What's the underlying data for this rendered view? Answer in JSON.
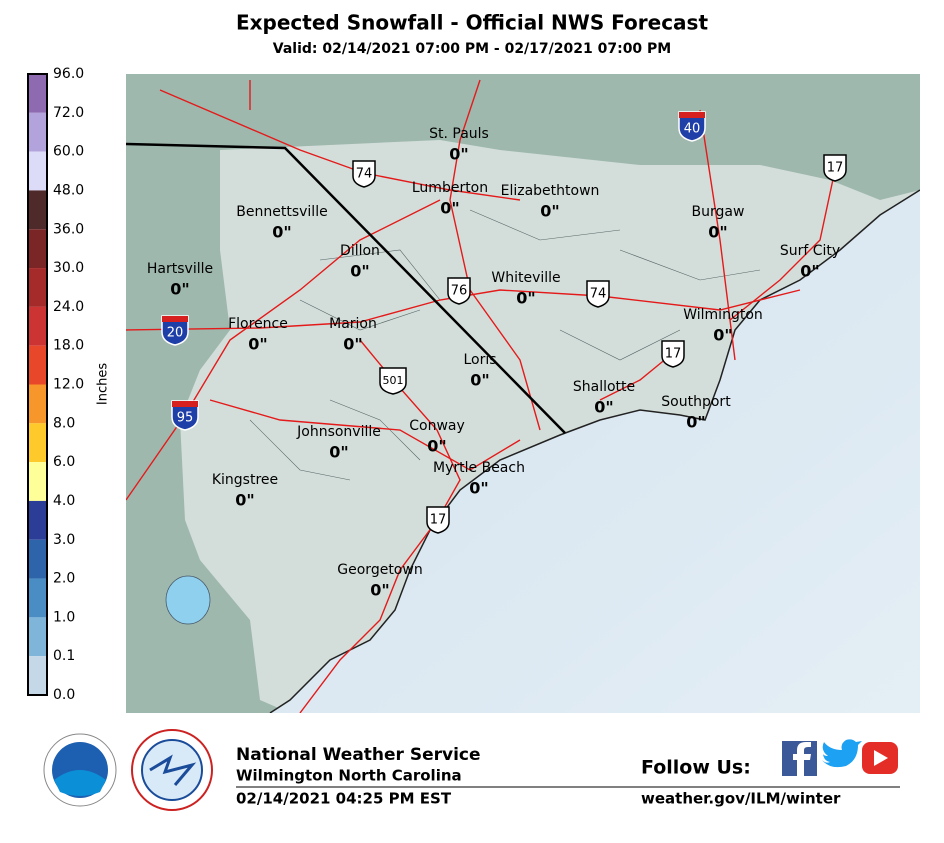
{
  "header": {
    "title": "Expected Snowfall - Official NWS Forecast",
    "subtitle": "Valid: 02/14/2021 07:00 PM - 02/17/2021 07:00 PM"
  },
  "legend": {
    "label": "Inches",
    "ticks": [
      "96.0",
      "72.0",
      "60.0",
      "48.0",
      "36.0",
      "30.0",
      "24.0",
      "18.0",
      "12.0",
      "8.0",
      "6.0",
      "4.0",
      "3.0",
      "2.0",
      "1.0",
      "0.1",
      "0.0"
    ],
    "colors": [
      "#8e6bb0",
      "#b3a3dc",
      "#dcdcf8",
      "#4f2a2a",
      "#7a2626",
      "#a52a2a",
      "#cc3333",
      "#e8472a",
      "#f7962a",
      "#fec92a",
      "#ffff99",
      "#2b3d96",
      "#2e64aa",
      "#4a8cc4",
      "#7fb5d9",
      "#c4d8e8",
      "#f5f5f5"
    ]
  },
  "places": [
    {
      "name": "St. Pauls",
      "amount": "0\""
    },
    {
      "name": "Lumberton",
      "amount": "0\""
    },
    {
      "name": "Elizabethtown",
      "amount": "0\""
    },
    {
      "name": "Bennettsville",
      "amount": "0\""
    },
    {
      "name": "Burgaw",
      "amount": "0\""
    },
    {
      "name": "Dillon",
      "amount": "0\""
    },
    {
      "name": "Surf City",
      "amount": "0\""
    },
    {
      "name": "Hartsville",
      "amount": "0\""
    },
    {
      "name": "Whiteville",
      "amount": "0\""
    },
    {
      "name": "Florence",
      "amount": "0\""
    },
    {
      "name": "Marion",
      "amount": "0\""
    },
    {
      "name": "Wilmington",
      "amount": "0\""
    },
    {
      "name": "Loris",
      "amount": "0\""
    },
    {
      "name": "Shallotte",
      "amount": "0\""
    },
    {
      "name": "Southport",
      "amount": "0\""
    },
    {
      "name": "Johnsonville",
      "amount": "0\""
    },
    {
      "name": "Conway",
      "amount": "0\""
    },
    {
      "name": "Myrtle Beach",
      "amount": "0\""
    },
    {
      "name": "Kingstree",
      "amount": "0\""
    },
    {
      "name": "Georgetown",
      "amount": "0\""
    }
  ],
  "shields": [
    {
      "kind": "US",
      "number": "74"
    },
    {
      "kind": "US",
      "number": "76"
    },
    {
      "kind": "US",
      "number": "74"
    },
    {
      "kind": "US",
      "number": "501"
    },
    {
      "kind": "US",
      "number": "17"
    },
    {
      "kind": "US",
      "number": "17"
    },
    {
      "kind": "US",
      "number": "17"
    },
    {
      "kind": "I",
      "number": "40"
    },
    {
      "kind": "I",
      "number": "20"
    },
    {
      "kind": "I",
      "number": "95"
    }
  ],
  "footer": {
    "office": "National Weather Service",
    "location": "Wilmington North Carolina",
    "issued": "02/14/2021 04:25 PM EST",
    "follow": "Follow Us:",
    "url": "weather.gov/ILM/winter"
  }
}
